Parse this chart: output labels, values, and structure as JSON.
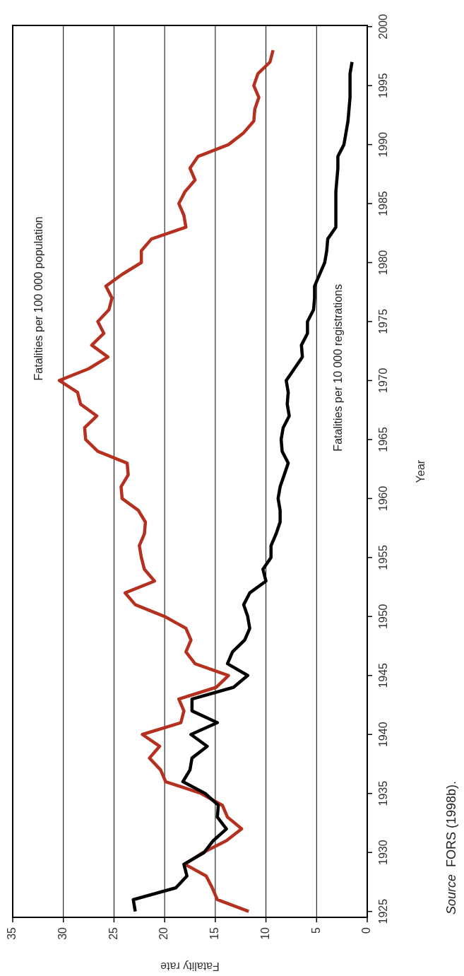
{
  "chart_data": {
    "type": "line",
    "xlabel": "Fatality rate",
    "ylabel": "Year",
    "series": [
      {
        "name": "Fatalities per 100 000 population",
        "color": "#b5301f",
        "x": [
          11.7,
          14.8,
          15.3,
          15.9,
          18.0,
          16.2,
          13.9,
          12.4,
          13.8,
          14.3,
          16.4,
          19.9,
          20.4,
          21.5,
          20.5,
          22.2,
          18.4,
          18.1,
          18.6,
          14.9,
          13.7,
          17.0,
          17.9,
          17.4,
          17.9,
          20.0,
          22.9,
          23.9,
          21.0,
          22.0,
          22.3,
          22.5,
          22.0,
          21.9,
          22.6,
          24.2,
          24.3,
          23.6,
          23.7,
          26.6,
          27.8,
          27.9,
          26.7,
          28.3,
          28.6,
          30.4,
          27.5,
          25.6,
          27.2,
          26.0,
          26.6,
          25.5,
          25.2,
          25.8,
          24.2,
          22.3,
          22.3,
          21.3,
          17.9,
          18.1,
          18.6,
          18.0,
          17.0,
          17.5,
          16.7,
          13.7,
          12.2,
          11.2,
          11.1,
          10.7,
          11.2,
          10.8,
          9.6,
          9.3
        ],
        "values": [
          1925,
          1926,
          1927,
          1928,
          1929,
          1930,
          1931,
          1932,
          1933,
          1934,
          1935,
          1936,
          1937,
          1938,
          1939,
          1940,
          1941,
          1942,
          1943,
          1944,
          1945,
          1946,
          1947,
          1948,
          1949,
          1950,
          1951,
          1952,
          1953,
          1954,
          1955,
          1956,
          1957,
          1958,
          1959,
          1960,
          1961,
          1962,
          1963,
          1964,
          1965,
          1966,
          1967,
          1968,
          1969,
          1970,
          1971,
          1972,
          1973,
          1974,
          1975,
          1976,
          1977,
          1978,
          1979,
          1980,
          1981,
          1982,
          1983,
          1984,
          1985,
          1986,
          1987,
          1988,
          1989,
          1990,
          1991,
          1992,
          1993,
          1994,
          1995,
          1996,
          1997,
          1998
        ]
      },
      {
        "name": "Fatalities per 10 000 registrations",
        "color": "#000000",
        "x": [
          22.9,
          23.1,
          18.9,
          17.8,
          18.1,
          16.1,
          15.2,
          13.9,
          14.8,
          14.7,
          16.0,
          18.2,
          17.5,
          17.3,
          15.8,
          17.4,
          14.8,
          17.3,
          17.3,
          13.2,
          11.8,
          13.8,
          13.3,
          12.1,
          11.6,
          11.8,
          12.2,
          11.6,
          10.0,
          10.3,
          9.5,
          9.5,
          9.0,
          8.6,
          8.6,
          8.8,
          8.6,
          8.2,
          7.8,
          8.4,
          8.5,
          8.3,
          7.7,
          7.9,
          7.8,
          8.0,
          7.2,
          6.4,
          6.5,
          5.9,
          5.9,
          5.3,
          5.2,
          5.2,
          4.7,
          4.2,
          4.0,
          3.9,
          3.1,
          3.1,
          3.1,
          3.1,
          3.0,
          2.9,
          2.9,
          2.3,
          2.1,
          1.9,
          1.8,
          1.7,
          1.7,
          1.7,
          1.5
        ],
        "values": [
          1925,
          1926,
          1927,
          1928,
          1929,
          1930,
          1931,
          1932,
          1933,
          1934,
          1935,
          1936,
          1937,
          1938,
          1939,
          1940,
          1941,
          1942,
          1943,
          1944,
          1945,
          1946,
          1947,
          1948,
          1949,
          1950,
          1951,
          1952,
          1953,
          1954,
          1955,
          1956,
          1957,
          1958,
          1959,
          1960,
          1961,
          1962,
          1963,
          1964,
          1965,
          1966,
          1967,
          1968,
          1969,
          1970,
          1971,
          1972,
          1973,
          1974,
          1975,
          1976,
          1977,
          1978,
          1979,
          1980,
          1981,
          1982,
          1983,
          1984,
          1985,
          1986,
          1987,
          1988,
          1989,
          1990,
          1991,
          1992,
          1993,
          1994,
          1995,
          1996,
          1997
        ]
      }
    ],
    "xlim": [
      35,
      0
    ],
    "xticks": [
      35,
      30,
      25,
      20,
      15,
      10,
      5,
      0
    ],
    "ylim": [
      1924.5,
      2000.1
    ],
    "yticks": [
      1925,
      1930,
      1935,
      1940,
      1945,
      1950,
      1955,
      1960,
      1965,
      1970,
      1975,
      1980,
      1985,
      1990,
      1995,
      2000
    ],
    "grid": "x",
    "legend": false,
    "line_style": "solid",
    "marker": "none",
    "annotations": [
      "Source  FORS (1998b)."
    ]
  }
}
